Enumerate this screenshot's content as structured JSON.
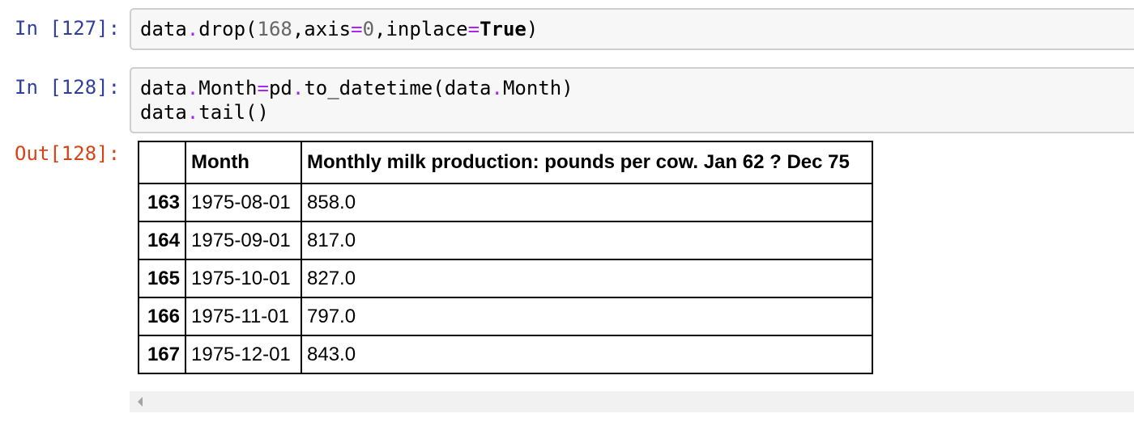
{
  "cells": [
    {
      "prompt": "In [127]:",
      "code_lines": [
        [
          {
            "text": "data",
            "cls": ""
          },
          {
            "text": ".",
            "cls": "op"
          },
          {
            "text": "drop(",
            "cls": ""
          },
          {
            "text": "168",
            "cls": "num"
          },
          {
            "text": ",axis",
            "cls": ""
          },
          {
            "text": "=",
            "cls": "op"
          },
          {
            "text": "0",
            "cls": "num"
          },
          {
            "text": ",inplace",
            "cls": ""
          },
          {
            "text": "=",
            "cls": "op"
          },
          {
            "text": "True",
            "cls": "kw"
          },
          {
            "text": ")",
            "cls": ""
          }
        ]
      ]
    },
    {
      "prompt": "In [128]:",
      "code_lines": [
        [
          {
            "text": "data",
            "cls": ""
          },
          {
            "text": ".",
            "cls": "op"
          },
          {
            "text": "Month",
            "cls": ""
          },
          {
            "text": "=",
            "cls": "op"
          },
          {
            "text": "pd",
            "cls": ""
          },
          {
            "text": ".",
            "cls": "op"
          },
          {
            "text": "to_datetime(data",
            "cls": ""
          },
          {
            "text": ".",
            "cls": "op"
          },
          {
            "text": "Month)",
            "cls": ""
          }
        ],
        [
          {
            "text": "data",
            "cls": ""
          },
          {
            "text": ".",
            "cls": "op"
          },
          {
            "text": "tail()",
            "cls": ""
          }
        ]
      ]
    }
  ],
  "output": {
    "prompt": "Out[128]:",
    "columns": [
      "",
      "Month",
      "Monthly milk production: pounds per cow. Jan 62 ? Dec 75"
    ],
    "rows": [
      {
        "index": "163",
        "month": "1975-08-01",
        "value": "858.0"
      },
      {
        "index": "164",
        "month": "1975-09-01",
        "value": "817.0"
      },
      {
        "index": "165",
        "month": "1975-10-01",
        "value": "827.0"
      },
      {
        "index": "166",
        "month": "1975-11-01",
        "value": "797.0"
      },
      {
        "index": "167",
        "month": "1975-12-01",
        "value": "843.0"
      }
    ]
  },
  "colors": {
    "input_prompt": "#303f9f",
    "output_prompt": "#d84315",
    "cell_background": "#f7f7f7",
    "cell_border": "#cfcfcf"
  }
}
